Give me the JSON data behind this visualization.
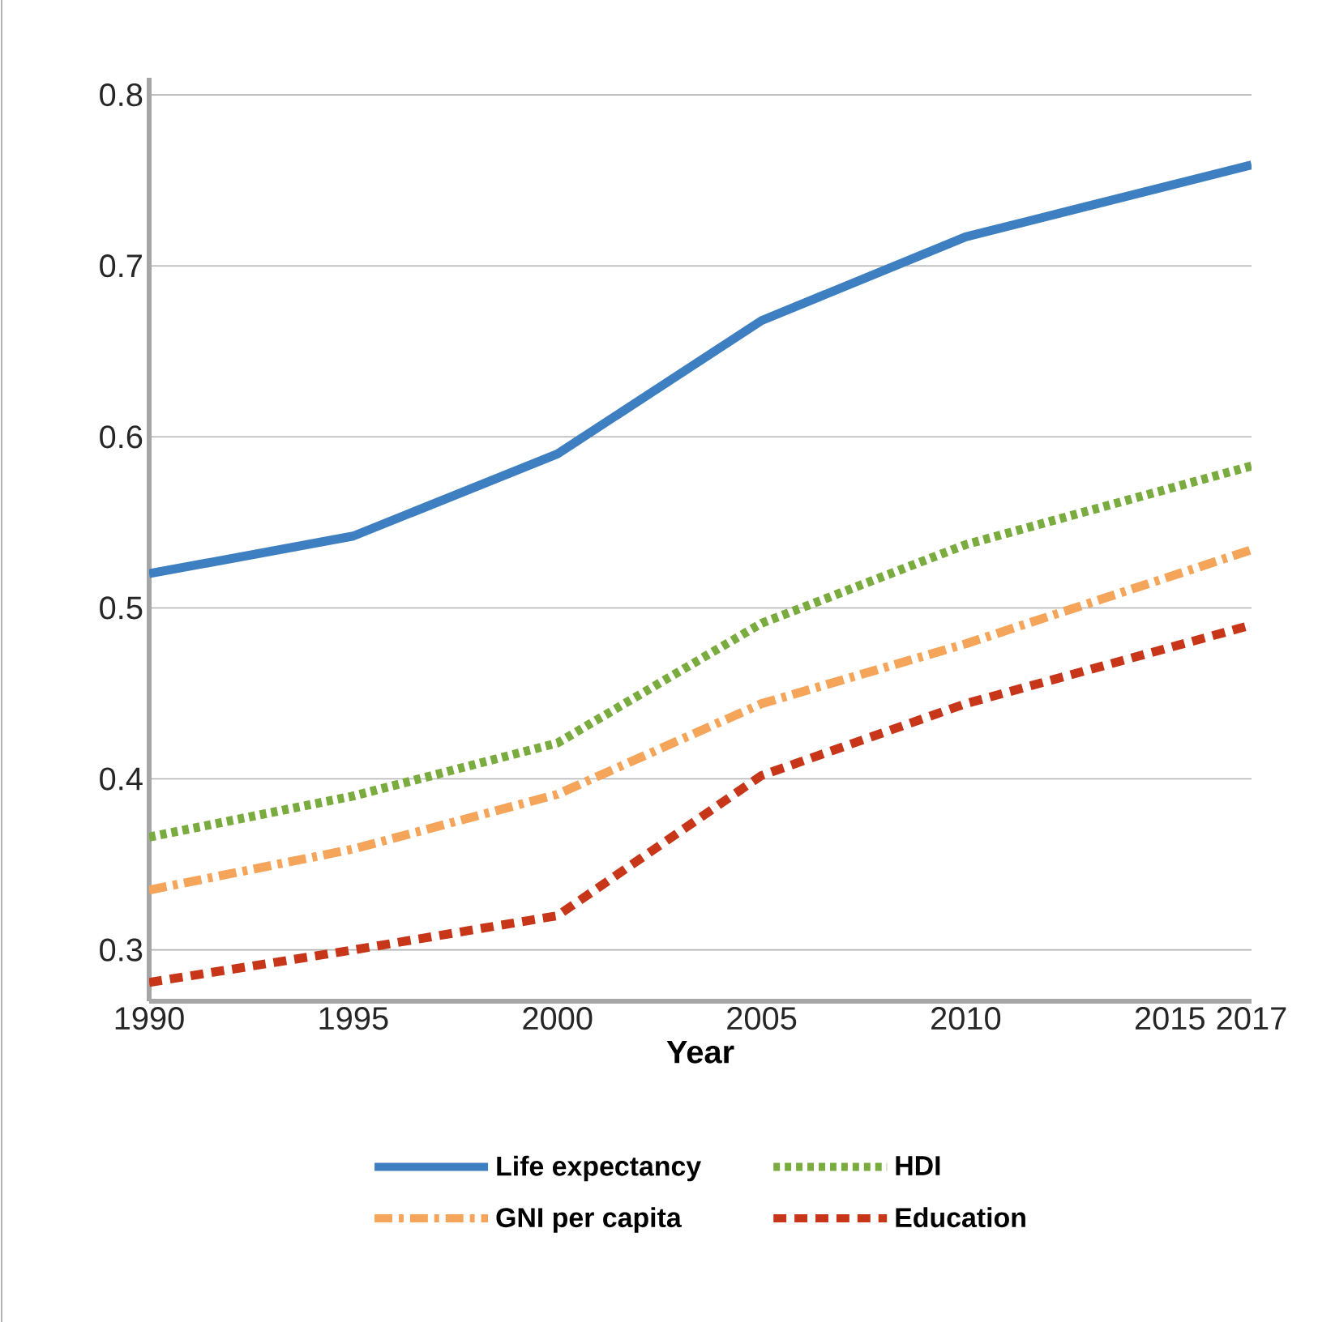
{
  "chart_data": {
    "type": "line",
    "xlabel": "Year",
    "x": [
      1990,
      1995,
      2000,
      2005,
      2010,
      2017
    ],
    "series": [
      {
        "name": "Life expectancy",
        "color": "#3d7fc1",
        "line_style": "solid",
        "values": [
          0.52,
          0.542,
          0.59,
          0.668,
          0.717,
          0.759
        ]
      },
      {
        "name": "HDI",
        "color": "#7aab3e",
        "line_style": "dotted",
        "values": [
          0.366,
          0.39,
          0.421,
          0.491,
          0.537,
          0.583
        ]
      },
      {
        "name": "GNI per capita",
        "color": "#f5a55a",
        "line_style": "dashdot",
        "values": [
          0.335,
          0.359,
          0.391,
          0.444,
          0.479,
          0.534
        ]
      },
      {
        "name": "Education",
        "color": "#c8361a",
        "line_style": "dashed",
        "values": [
          0.281,
          0.3,
          0.32,
          0.402,
          0.444,
          0.49
        ]
      }
    ],
    "xlim": [
      1990,
      2017
    ],
    "xticks": [
      1990,
      1995,
      2000,
      2005,
      2010,
      2015,
      2017
    ],
    "ylim": [
      0.27,
      0.81
    ],
    "yticks": [
      0.3,
      0.4,
      0.5,
      0.6,
      0.7,
      0.8
    ],
    "grid": "y",
    "legend": "bottom",
    "marker": "none"
  }
}
